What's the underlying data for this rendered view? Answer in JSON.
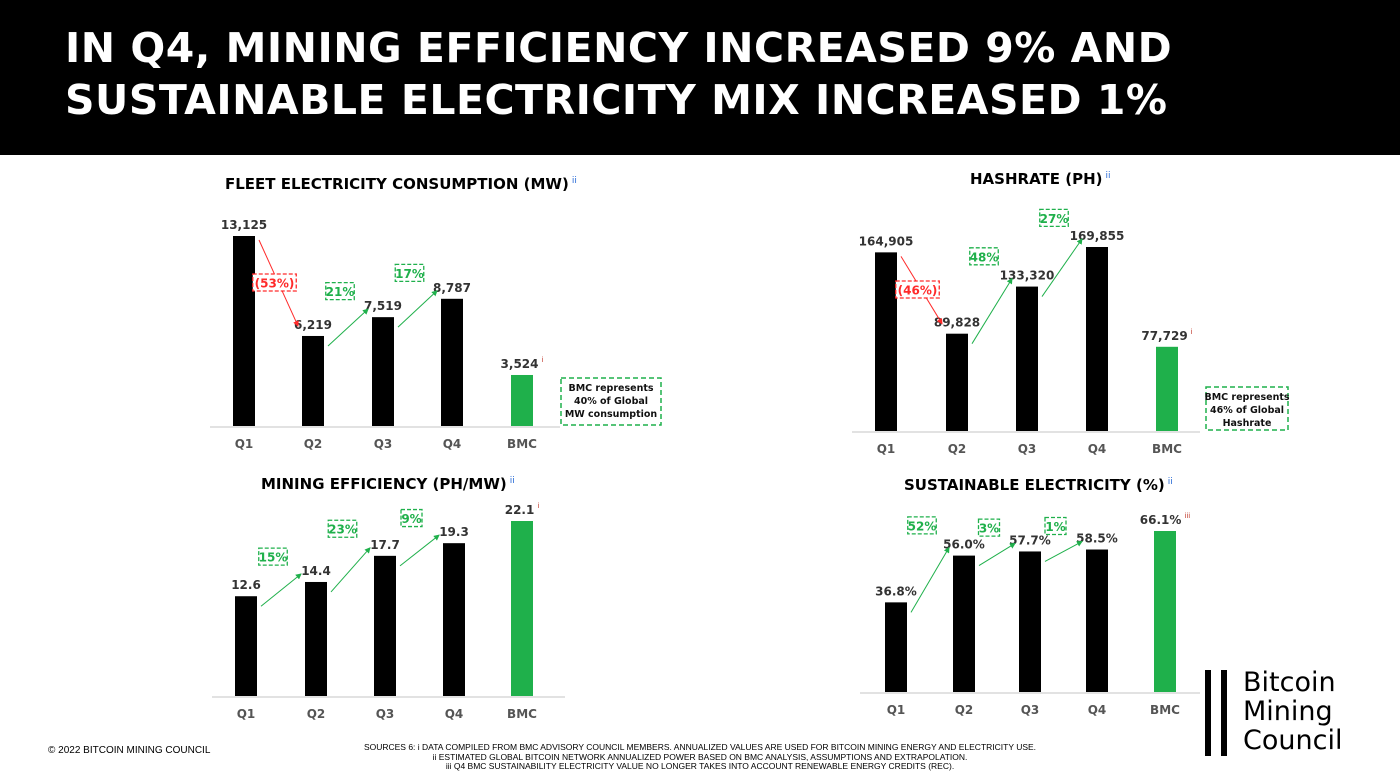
{
  "header": {
    "line1": "IN Q4, MINING EFFICIENCY INCREASED 9% AND",
    "line2": "SUSTAINABLE ELECTRICITY MIX INCREASED 1%"
  },
  "colors": {
    "bar": "#000000",
    "bmc": "#1fb04b",
    "up": "#1fb04b",
    "down": "#ff2a2a",
    "axis": "#d9d9d9"
  },
  "chart_data": [
    {
      "type": "bar",
      "title": "FLEET ELECTRICITY CONSUMPTION (MW)",
      "title_sup": "ii",
      "categories": [
        "Q1",
        "Q2",
        "Q3",
        "Q4",
        "BMC"
      ],
      "values": [
        13125,
        6219,
        7519,
        8787,
        3524
      ],
      "labels": [
        "13,125",
        "6,219",
        "7,519",
        "8,787",
        "3,524"
      ],
      "label_sup": [
        "",
        "",
        "",
        "",
        "i"
      ],
      "changes": [
        "(53%)",
        "21%",
        "17%"
      ],
      "note": [
        "BMC represents",
        "40% of Global",
        "MW consumption"
      ]
    },
    {
      "type": "bar",
      "title": "HASHRATE (PH)",
      "title_sup": "ii",
      "categories": [
        "Q1",
        "Q2",
        "Q3",
        "Q4",
        "BMC"
      ],
      "values": [
        164905,
        89828,
        133320,
        169855,
        77729
      ],
      "labels": [
        "164,905",
        "89,828",
        "133,320",
        "169,855",
        "77,729"
      ],
      "label_sup": [
        "",
        "",
        "",
        "",
        "i"
      ],
      "changes": [
        "(46%)",
        "48%",
        "27%"
      ],
      "note": [
        "BMC represents",
        "46% of Global",
        "Hashrate"
      ]
    },
    {
      "type": "bar",
      "title": "MINING EFFICIENCY (PH/MW)",
      "title_sup": "ii",
      "categories": [
        "Q1",
        "Q2",
        "Q3",
        "Q4",
        "BMC"
      ],
      "values": [
        12.6,
        14.4,
        17.7,
        19.3,
        22.1
      ],
      "labels": [
        "12.6",
        "14.4",
        "17.7",
        "19.3",
        "22.1"
      ],
      "label_sup": [
        "",
        "",
        "",
        "",
        "i"
      ],
      "changes": [
        "15%",
        "23%",
        "9%"
      ],
      "note": []
    },
    {
      "type": "bar",
      "title": "SUSTAINABLE ELECTRICITY (%)",
      "title_sup": "ii",
      "categories": [
        "Q1",
        "Q2",
        "Q3",
        "Q4",
        "BMC"
      ],
      "values": [
        36.8,
        56.0,
        57.7,
        58.5,
        66.1
      ],
      "labels": [
        "36.8%",
        "56.0%",
        "57.7%",
        "58.5%",
        "66.1%"
      ],
      "label_sup": [
        "",
        "",
        "",
        "",
        "iii"
      ],
      "changes": [
        "52%",
        "3%",
        "1%"
      ],
      "note": []
    }
  ],
  "footer": {
    "copyright": "© 2022 BITCOIN MINING COUNCIL",
    "sources": [
      "SOURCES 6: i DATA COMPILED FROM BMC ADVISORY COUNCIL MEMBERS. ANNUALIZED VALUES ARE USED FOR BITCOIN MINING ENERGY AND ELECTRICITY USE.",
      "ii ESTIMATED GLOBAL BITCOIN NETWORK ANNUALIZED POWER BASED ON BMC ANALYSIS, ASSUMPTIONS AND EXTRAPOLATION.",
      "iii Q4 BMC SUSTAINABILITY ELECTRICITY VALUE NO LONGER TAKES INTO ACCOUNT RENEWABLE ENERGY CREDITS (REC)."
    ]
  },
  "logo": {
    "lines": [
      "Bitcoin",
      "Mining",
      "Council"
    ]
  }
}
